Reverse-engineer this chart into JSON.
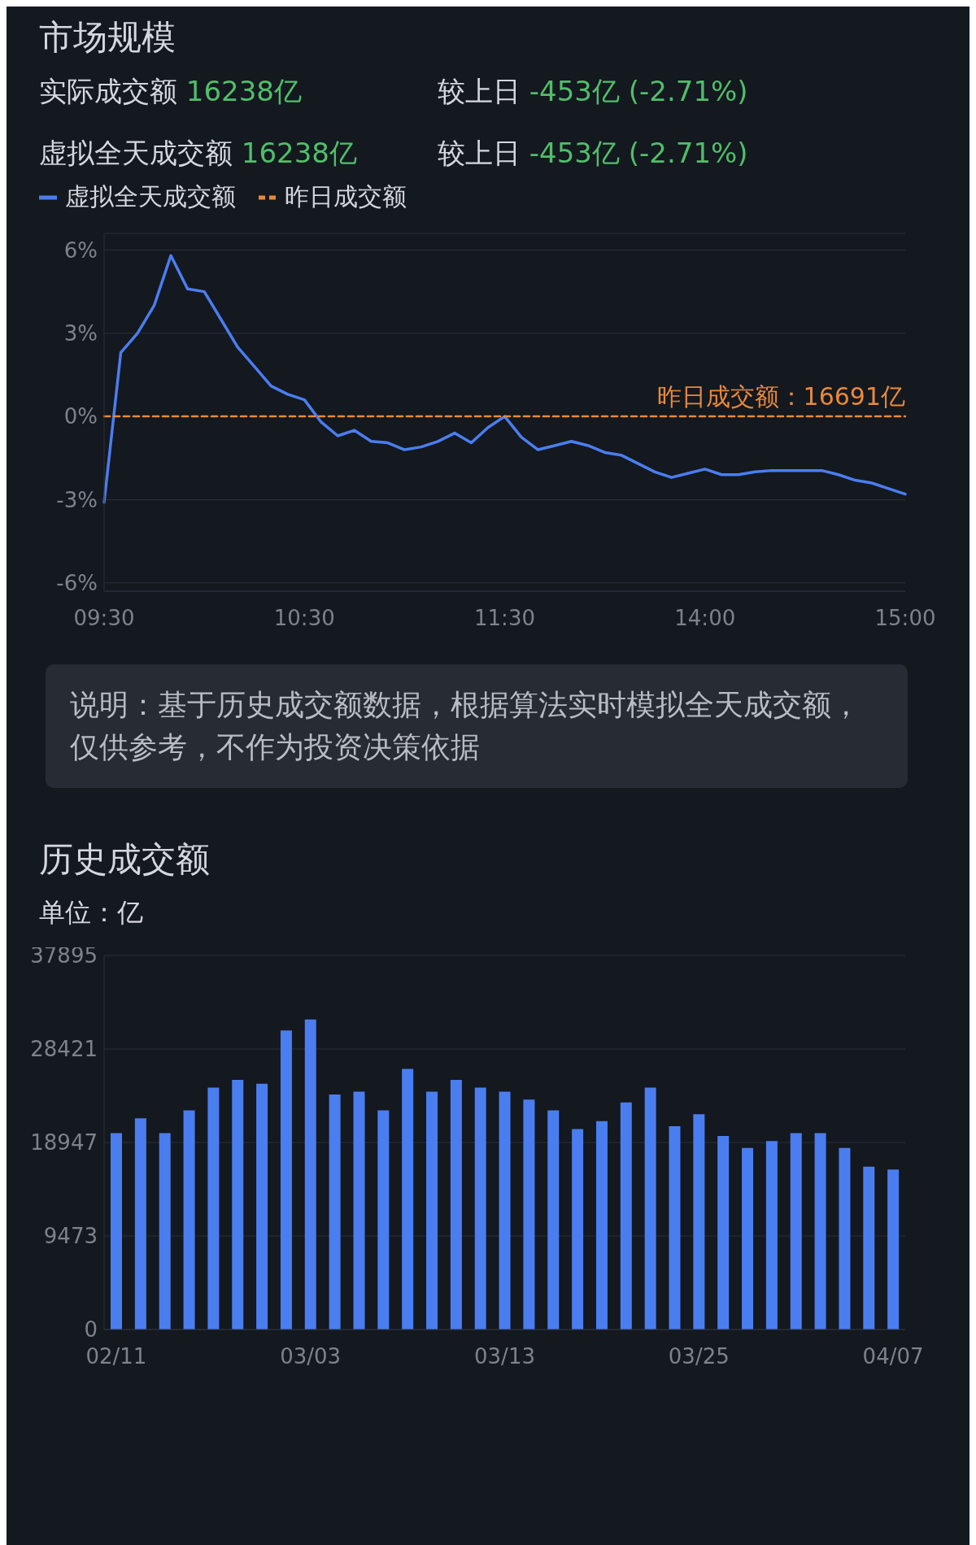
{
  "chart_data": [
    {
      "type": "line",
      "title": "市场规模",
      "legend": "top left",
      "marker": "none",
      "grid": "y",
      "categories": [
        "09:30",
        null,
        null,
        null,
        null,
        null,
        null,
        null,
        null,
        null,
        null,
        null,
        "10:30",
        null,
        null,
        null,
        null,
        null,
        null,
        null,
        null,
        null,
        null,
        null,
        "11:30",
        null,
        null,
        null,
        null,
        null,
        null,
        null,
        null,
        null,
        null,
        null,
        "14:00",
        null,
        null,
        null,
        null,
        null,
        null,
        null,
        null,
        null,
        null,
        null,
        "15:00"
      ],
      "ylim": [
        -6.3,
        6.6
      ],
      "yticks": [
        {
          "value": -6,
          "label": "-6%"
        },
        {
          "value": -3,
          "label": "-3%"
        },
        {
          "value": 0,
          "label": "0%"
        },
        {
          "value": 3,
          "label": "3%"
        },
        {
          "value": 6,
          "label": "6%"
        }
      ],
      "series": [
        {
          "name": "虚拟全天成交额",
          "color": "#4a7ef0",
          "values": [
            -3.1,
            2.3,
            3.0,
            4.0,
            5.8,
            4.6,
            4.5,
            3.5,
            2.5,
            1.8,
            1.1,
            0.8,
            0.6,
            -0.2,
            -0.7,
            -0.5,
            -0.9,
            -0.95,
            -1.2,
            -1.1,
            -0.9,
            -0.6,
            -0.95,
            -0.4,
            0.0,
            -0.75,
            -1.2,
            -1.05,
            -0.9,
            -1.05,
            -1.3,
            -1.4,
            -1.7,
            -2.0,
            -2.2,
            -2.05,
            -1.9,
            -2.1,
            -2.1,
            -2.0,
            -1.95,
            -1.95,
            -1.95,
            -1.95,
            -2.1,
            -2.3,
            -2.4,
            -2.6,
            -2.8
          ]
        },
        {
          "name": "昨日成交额",
          "color": "#e8893a",
          "line_style": "dashed",
          "values": [
            0,
            0,
            0,
            0,
            0,
            0,
            0,
            0,
            0,
            0,
            0,
            0,
            0,
            0,
            0,
            0,
            0,
            0,
            0,
            0,
            0,
            0,
            0,
            0,
            0,
            0,
            0,
            0,
            0,
            0,
            0,
            0,
            0,
            0,
            0,
            0,
            0,
            0,
            0,
            0,
            0,
            0,
            0,
            0,
            0,
            0,
            0,
            0,
            0
          ]
        }
      ],
      "annotations": [
        "实际成交额 16238亿",
        "较上日 -453亿 (-2.71%)",
        "虚拟全天成交额 16238亿",
        "较上日 -453亿 (-2.71%)",
        "说明：基于历史成交额数据，根据算法实时模拟全天成交额，仅供参考，不作为投资决策依据",
        {
          "text": "昨日成交额：16691亿",
          "x": "15:00",
          "y": 0
        }
      ]
    },
    {
      "type": "bar",
      "title": "历史成交额",
      "subtitle": "单位：亿",
      "grid": "y",
      "color": "#4a7ef0",
      "categories": [
        "02/11",
        null,
        null,
        null,
        null,
        null,
        null,
        null,
        "03/03",
        null,
        null,
        null,
        null,
        null,
        null,
        null,
        "03/13",
        null,
        null,
        null,
        null,
        null,
        null,
        null,
        "03/25",
        null,
        null,
        null,
        null,
        null,
        null,
        null,
        "04/07"
      ],
      "values": [
        19900,
        21400,
        19900,
        22200,
        24500,
        25300,
        24900,
        30300,
        31400,
        23800,
        24100,
        22200,
        26400,
        24100,
        25300,
        24500,
        24100,
        23300,
        22200,
        20300,
        21100,
        23000,
        24500,
        20600,
        21800,
        19600,
        18400,
        19100,
        19900,
        19900,
        18400,
        16500,
        16200
      ],
      "ylim": [
        0,
        37895
      ],
      "yticks": [
        0,
        9473,
        18947,
        28421,
        37895
      ]
    }
  ]
}
